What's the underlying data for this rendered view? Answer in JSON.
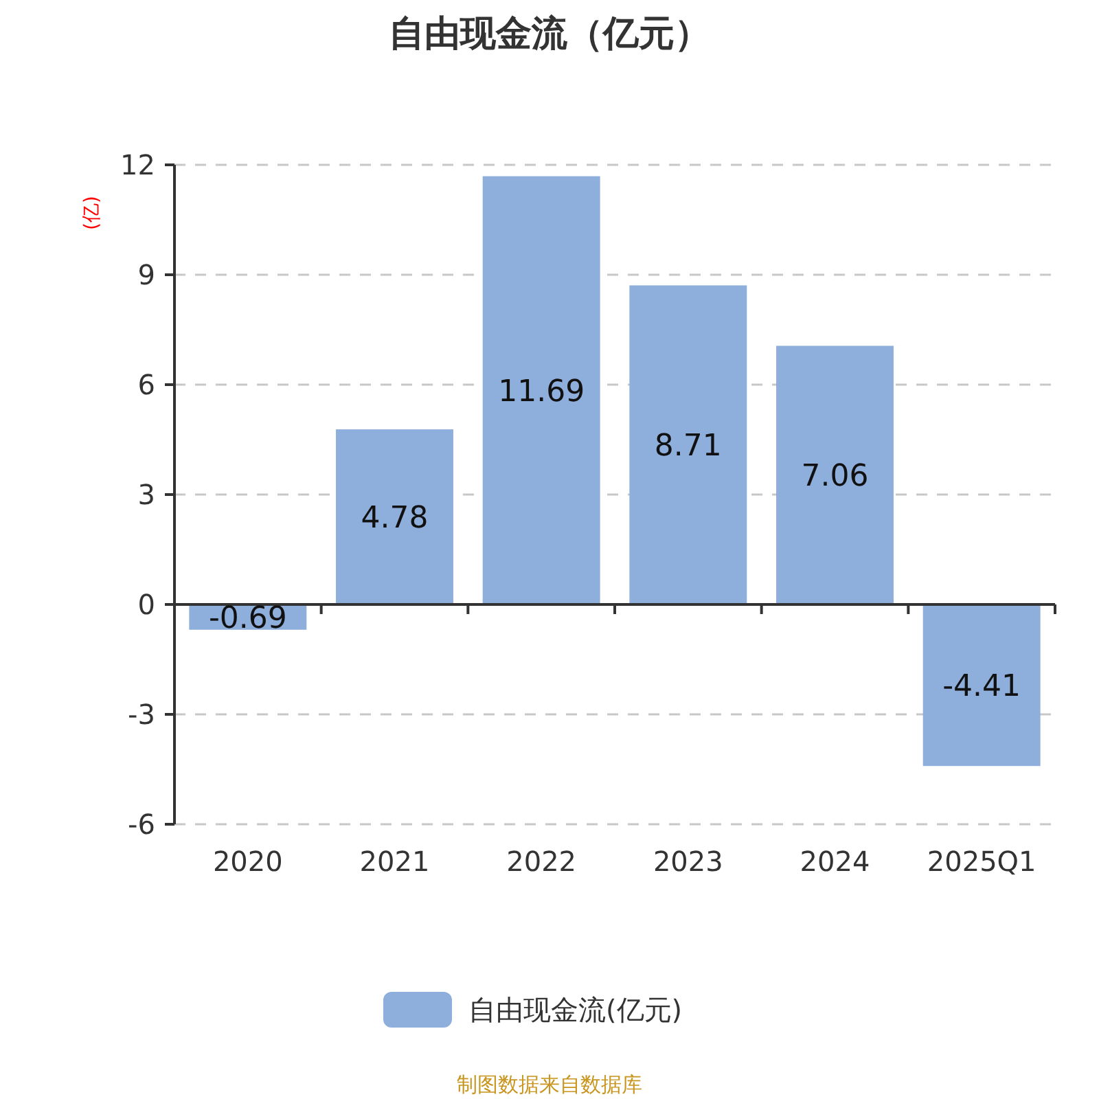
{
  "chart_data": {
    "type": "bar",
    "title": "自由现金流（亿元）",
    "ylabel": "(亿)",
    "categories": [
      "2020",
      "2021",
      "2022",
      "2023",
      "2024",
      "2025Q1"
    ],
    "series": [
      {
        "name": "自由现金流(亿元)",
        "color": "#8eaedb",
        "values": [
          -0.69,
          4.78,
          11.69,
          8.71,
          7.06,
          -4.41
        ]
      }
    ],
    "ylim": [
      -6,
      12
    ],
    "yticks": [
      -6,
      -3,
      0,
      3,
      6,
      9,
      12
    ],
    "grid": "y",
    "legend": "bottom",
    "data_labels": true,
    "annotations": [
      "制图数据来自数据库"
    ]
  }
}
